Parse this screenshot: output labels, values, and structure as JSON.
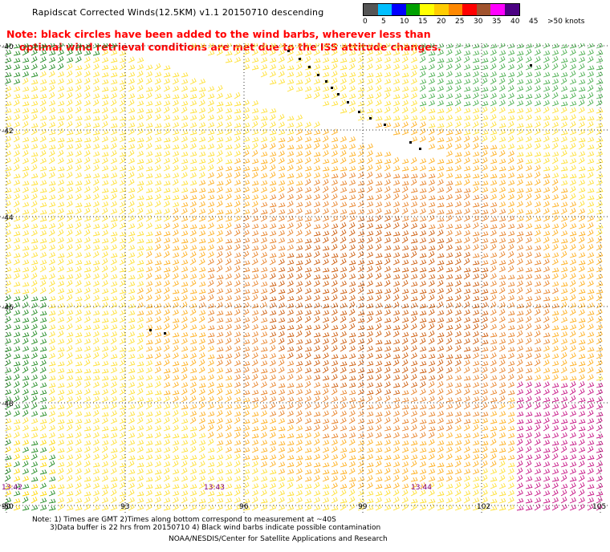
{
  "title": "Rapidscat Corrected Winds(12.5KM) v1.1 20150710 descending",
  "note": {
    "line1": "Note: black circles have been added to the wind barbs, wherever less than",
    "line2": "optimal wind retrieval conditions are met due to the ISS attitude changes."
  },
  "scale": {
    "labels": [
      "0",
      "5",
      "10",
      "15",
      "20",
      "25",
      "30",
      "35",
      "40",
      "45",
      ">50 knots"
    ],
    "colors": [
      "#555555",
      "#00bfff",
      "#0000ff",
      "#00a000",
      "#ffff00",
      "#ffcc00",
      "#ff8800",
      "#ff0000",
      "#a0522d",
      "#ff00ff",
      "#4b0082"
    ]
  },
  "map": {
    "lat_labels": [
      "-40",
      "-42",
      "-44",
      "-46",
      "-48",
      "-50"
    ],
    "lon_labels": [
      "90",
      "93",
      "96",
      "99",
      "102",
      "105"
    ],
    "time_labels": [
      "13:42",
      "13:43",
      "13:44"
    ]
  },
  "footer": {
    "line1": "Note: 1) Times are GMT 2)Times along bottom correspond to measurement at ~40S",
    "line2": "3)Data buffer is 22 hrs from 20150710 4) Black wind barbs indicate possible contamination",
    "credit": "NOAA/NESDIS/Center for Satellite Applications and Research"
  }
}
